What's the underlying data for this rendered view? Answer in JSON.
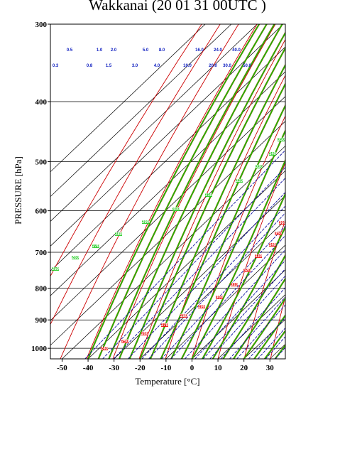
{
  "chart_data": {
    "type": "skew-t thermodynamic diagram",
    "title": "Wakkanai (20 01 31 00UTC )",
    "xlabel": "Temperature  [°C]",
    "ylabel": "PRESSURE [hPa]",
    "x_ticks": [
      -50,
      -40,
      -30,
      -20,
      -10,
      0,
      10,
      20,
      30
    ],
    "y_ticks": [
      300,
      400,
      500,
      600,
      700,
      800,
      900,
      1000
    ],
    "ylim": [
      1040,
      300
    ],
    "y_scale": "log",
    "grid": true,
    "colors": {
      "isotherm": "#000000",
      "dry_adiabat": "#cc0000",
      "moist_adiabat": "#00cc00",
      "moist_adiabat_outline": "#886600",
      "mixing_ratio": "#1010a0",
      "mixing_label": "#1020c0",
      "theta_label": "#ee0000",
      "theta_e_label": "#22cc22"
    },
    "mixing_ratio_labels_row1": [
      "0.5",
      "1.0",
      "2.0",
      "5.0",
      "8.0",
      "16.0",
      "24.0",
      "40.0"
    ],
    "mixing_ratio_labels_row2": [
      "0.3",
      "0.8",
      "1.5",
      "3.0",
      "4.0",
      "10.0",
      "20.0",
      "30.0",
      "50.0"
    ],
    "theta_labels": [
      "240",
      "250",
      "260",
      "270",
      "280",
      "290",
      "300",
      "310",
      "320",
      "330",
      "340",
      "350",
      "360"
    ],
    "theta_e_labels": [
      "250",
      "260",
      "270",
      "280",
      "290",
      "300",
      "310",
      "320",
      "330",
      "340",
      "350"
    ]
  }
}
